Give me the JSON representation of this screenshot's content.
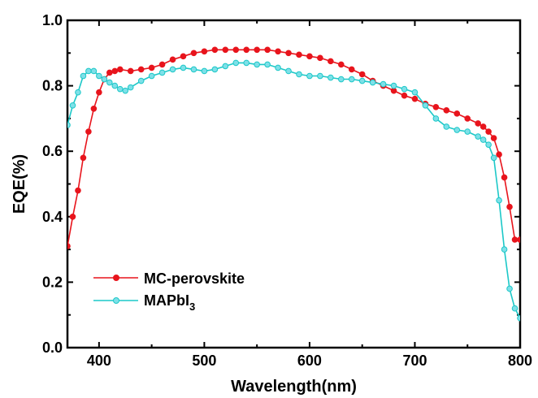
{
  "chart_data": {
    "type": "line",
    "title": "",
    "xlabel": "Wavelength(nm)",
    "ylabel": "EQE(%)",
    "xlim": [
      370,
      800
    ],
    "ylim": [
      0.0,
      1.0
    ],
    "xticks": [
      "400",
      "500",
      "600",
      "700",
      "800"
    ],
    "yticks": [
      "0.0",
      "0.2",
      "0.4",
      "0.6",
      "0.8",
      "1.0"
    ],
    "grid": false,
    "legend_position": "bottom-left",
    "series": [
      {
        "name": "MC-perovskite",
        "color": "#e8141c",
        "marker_fill": "#e8141c",
        "x": [
          370,
          375,
          380,
          385,
          390,
          395,
          400,
          405,
          410,
          415,
          420,
          430,
          440,
          450,
          460,
          470,
          480,
          490,
          500,
          510,
          520,
          530,
          540,
          550,
          560,
          570,
          580,
          590,
          600,
          610,
          620,
          630,
          640,
          650,
          660,
          670,
          680,
          690,
          700,
          710,
          720,
          730,
          740,
          750,
          760,
          765,
          770,
          775,
          780,
          785,
          790,
          795,
          800
        ],
        "y": [
          0.31,
          0.4,
          0.48,
          0.58,
          0.66,
          0.73,
          0.78,
          0.82,
          0.84,
          0.845,
          0.85,
          0.845,
          0.85,
          0.855,
          0.865,
          0.88,
          0.89,
          0.9,
          0.905,
          0.91,
          0.91,
          0.91,
          0.91,
          0.91,
          0.91,
          0.905,
          0.9,
          0.895,
          0.89,
          0.885,
          0.875,
          0.865,
          0.85,
          0.835,
          0.815,
          0.8,
          0.785,
          0.77,
          0.76,
          0.745,
          0.735,
          0.725,
          0.715,
          0.7,
          0.685,
          0.675,
          0.66,
          0.64,
          0.59,
          0.52,
          0.43,
          0.33,
          0.33
        ]
      },
      {
        "name": "MAPbI3",
        "color": "#1cc8c8",
        "marker_fill": "#7ee0e8",
        "x": [
          370,
          375,
          380,
          385,
          390,
          395,
          400,
          405,
          410,
          415,
          420,
          425,
          430,
          440,
          450,
          460,
          470,
          480,
          490,
          500,
          510,
          520,
          530,
          540,
          550,
          560,
          570,
          580,
          590,
          600,
          610,
          620,
          630,
          640,
          650,
          660,
          670,
          680,
          690,
          700,
          710,
          720,
          730,
          740,
          750,
          760,
          765,
          770,
          775,
          780,
          785,
          790,
          795,
          800
        ],
        "y": [
          0.68,
          0.74,
          0.78,
          0.83,
          0.845,
          0.845,
          0.83,
          0.82,
          0.81,
          0.8,
          0.79,
          0.785,
          0.795,
          0.815,
          0.83,
          0.84,
          0.85,
          0.855,
          0.85,
          0.845,
          0.85,
          0.86,
          0.87,
          0.87,
          0.865,
          0.865,
          0.855,
          0.845,
          0.835,
          0.83,
          0.83,
          0.825,
          0.82,
          0.82,
          0.815,
          0.81,
          0.805,
          0.8,
          0.79,
          0.78,
          0.74,
          0.7,
          0.675,
          0.665,
          0.66,
          0.645,
          0.635,
          0.62,
          0.58,
          0.45,
          0.3,
          0.18,
          0.12,
          0.09
        ]
      }
    ]
  },
  "legend": {
    "series_1_label": "MC-perovskite",
    "series_2_label_main": "MAPbI",
    "series_2_label_sub": "3"
  }
}
